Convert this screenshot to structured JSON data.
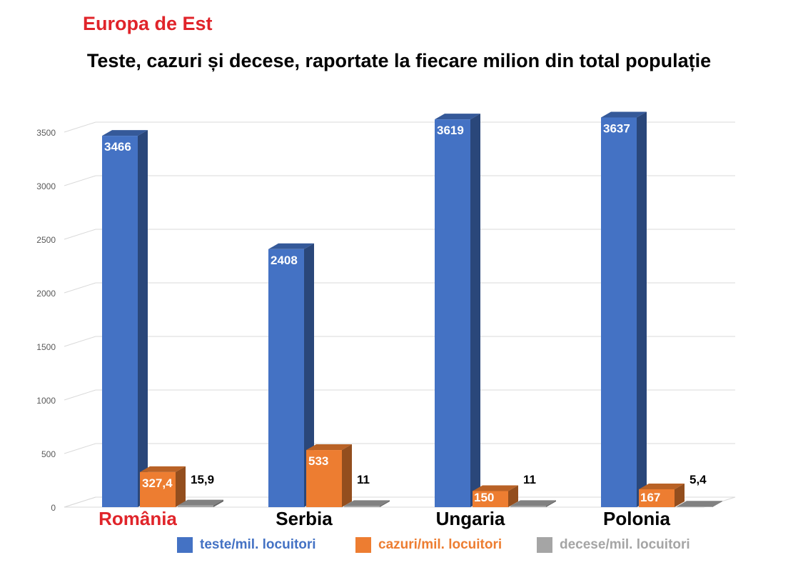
{
  "header": {
    "supertitle": "Europa de Est",
    "title": "Teste, cazuri și decese, raportate la fiecare milion din total populație"
  },
  "colors": {
    "teste": "#4472c4",
    "cazuri": "#ed7d31",
    "decese": "#a5a5a5",
    "highlight_category": "#e0242a"
  },
  "chart_data": {
    "type": "bar",
    "style": "3d-clustered-column",
    "categories": [
      "România",
      "Serbia",
      "Ungaria",
      "Polonia"
    ],
    "highlighted_category": "România",
    "series": [
      {
        "name": "teste/mil. locuitori",
        "values": [
          3466,
          2408,
          3619,
          3637
        ],
        "labels": [
          "3466",
          "2408",
          "3619",
          "3637"
        ]
      },
      {
        "name": "cazuri/mil. locuitori",
        "values": [
          327.4,
          533,
          150,
          167
        ],
        "labels": [
          "327,4",
          "533",
          "150",
          "167"
        ]
      },
      {
        "name": "decese/mil. locuitori",
        "values": [
          15.9,
          11,
          11,
          5.4
        ],
        "labels": [
          "15,9",
          "11",
          "11",
          "5,4"
        ]
      }
    ],
    "yticks": [
      0,
      500,
      1000,
      1500,
      2000,
      2500,
      3000,
      3500
    ],
    "ylim": [
      0,
      3500
    ],
    "grid": true,
    "legend": "bottom"
  }
}
